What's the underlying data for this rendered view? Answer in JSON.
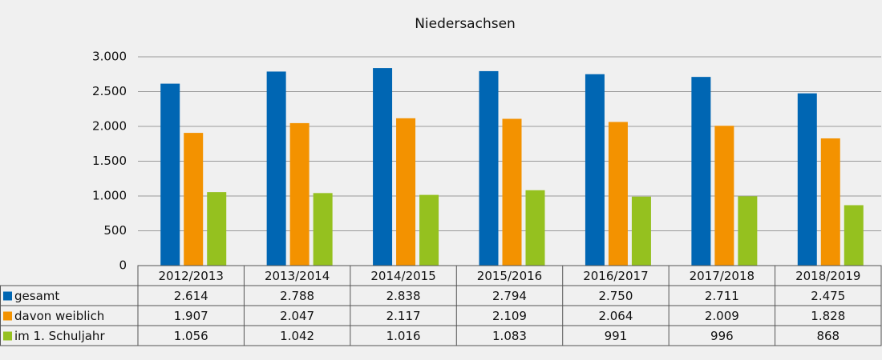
{
  "chart_data": {
    "type": "bar",
    "title": "Niedersachsen",
    "categories": [
      "2012/2013",
      "2013/2014",
      "2014/2015",
      "2015/2016",
      "2016/2017",
      "2017/2018",
      "2018/2019"
    ],
    "series": [
      {
        "name": "gesamt",
        "color": "#0066b3",
        "values": [
          2614,
          2788,
          2838,
          2794,
          2750,
          2711,
          2475
        ],
        "value_labels": [
          "2.614",
          "2.788",
          "2.838",
          "2.794",
          "2.750",
          "2.711",
          "2.475"
        ]
      },
      {
        "name": "davon weiblich",
        "color": "#f39200",
        "values": [
          1907,
          2047,
          2117,
          2109,
          2064,
          2009,
          1828
        ],
        "value_labels": [
          "1.907",
          "2.047",
          "2.117",
          "2.109",
          "2.064",
          "2.009",
          "1.828"
        ]
      },
      {
        "name": "im 1. Schuljahr",
        "color": "#95c11f",
        "values": [
          1056,
          1042,
          1016,
          1083,
          991,
          996,
          868
        ],
        "value_labels": [
          "1.056",
          "1.042",
          "1.016",
          "1.083",
          "991",
          "996",
          "868"
        ]
      }
    ],
    "ylim": [
      0,
      3000
    ],
    "yticks": [
      0,
      500,
      {
        "value": 1000,
        "label": "1.000"
      },
      {
        "value": 1500,
        "label": "1.500"
      },
      {
        "value": 2000,
        "label": "2.000"
      },
      {
        "value": 2500,
        "label": "2.500"
      },
      {
        "value": 3000,
        "label": "3.000"
      }
    ],
    "grid": true
  }
}
